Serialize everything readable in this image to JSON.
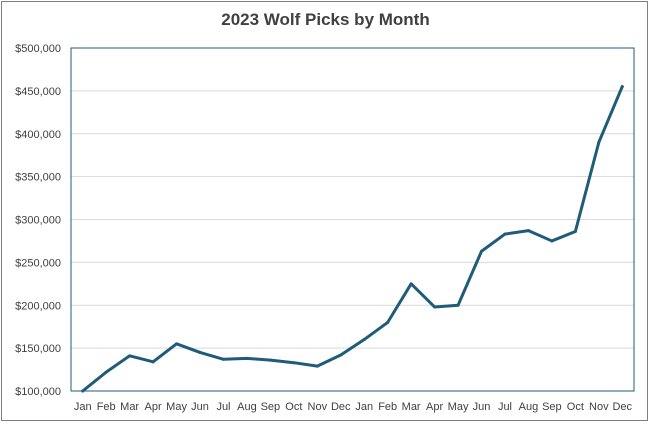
{
  "chart_data": {
    "type": "line",
    "title": "2023 Wolf Picks by Month",
    "xlabel": "",
    "ylabel": "",
    "categories": [
      "Jan",
      "Feb",
      "Mar",
      "Apr",
      "May",
      "Jun",
      "Jul",
      "Aug",
      "Sep",
      "Oct",
      "Nov",
      "Dec",
      "Jan",
      "Feb",
      "Mar",
      "Apr",
      "May",
      "Jun",
      "Jul",
      "Aug",
      "Sep",
      "Oct",
      "Nov",
      "Dec"
    ],
    "series": [
      {
        "values": [
          100000,
          122000,
          141000,
          134000,
          155000,
          145000,
          137000,
          138000,
          136000,
          133000,
          129000,
          142000,
          160000,
          180000,
          225000,
          198000,
          200000,
          263000,
          283000,
          287000,
          275000,
          286000,
          390000,
          455000
        ],
        "color": "#1f5c7a"
      }
    ],
    "ylim": [
      100000,
      500000
    ],
    "yticks": [
      "$100,000",
      "$150,000",
      "$200,000",
      "$250,000",
      "$300,000",
      "$350,000",
      "$400,000",
      "$450,000",
      "$500,000"
    ],
    "ytick_values": [
      100000,
      150000,
      200000,
      250000,
      300000,
      350000,
      400000,
      450000,
      500000
    ],
    "grid": true,
    "legend": "none"
  }
}
